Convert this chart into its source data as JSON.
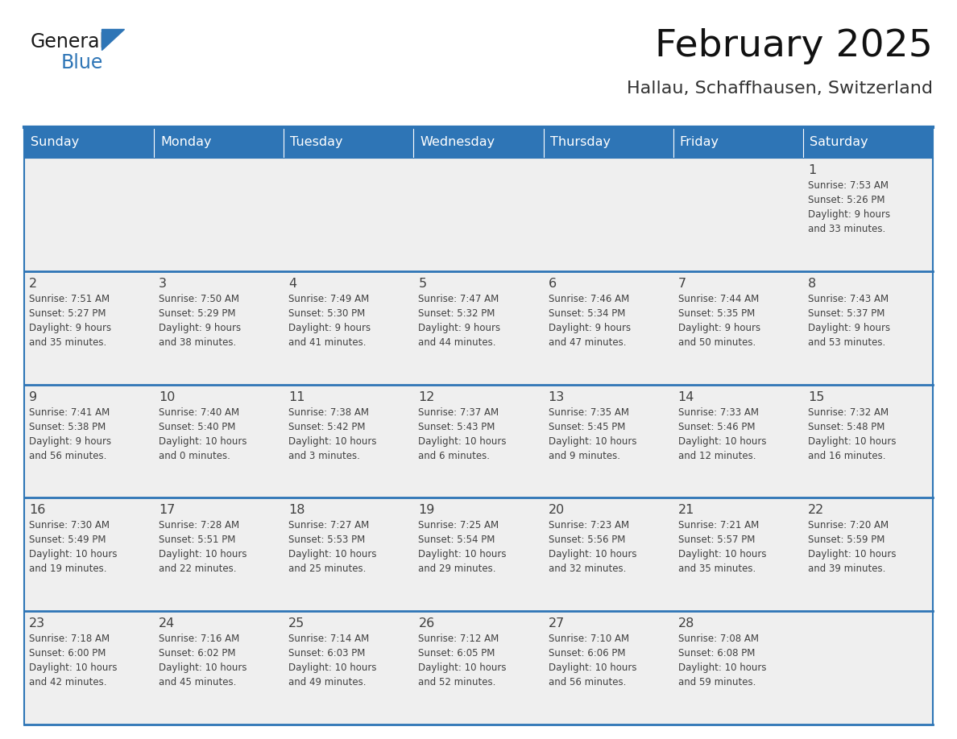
{
  "title": "February 2025",
  "subtitle": "Hallau, Schaffhausen, Switzerland",
  "header_bg": "#2E75B6",
  "header_text_color": "#FFFFFF",
  "cell_bg": "#EFEFEF",
  "border_color": "#2E75B6",
  "text_color": "#404040",
  "day_number_color": "#404040",
  "day_headers": [
    "Sunday",
    "Monday",
    "Tuesday",
    "Wednesday",
    "Thursday",
    "Friday",
    "Saturday"
  ],
  "weeks": [
    [
      {
        "day": "",
        "info": ""
      },
      {
        "day": "",
        "info": ""
      },
      {
        "day": "",
        "info": ""
      },
      {
        "day": "",
        "info": ""
      },
      {
        "day": "",
        "info": ""
      },
      {
        "day": "",
        "info": ""
      },
      {
        "day": "1",
        "info": "Sunrise: 7:53 AM\nSunset: 5:26 PM\nDaylight: 9 hours\nand 33 minutes."
      }
    ],
    [
      {
        "day": "2",
        "info": "Sunrise: 7:51 AM\nSunset: 5:27 PM\nDaylight: 9 hours\nand 35 minutes."
      },
      {
        "day": "3",
        "info": "Sunrise: 7:50 AM\nSunset: 5:29 PM\nDaylight: 9 hours\nand 38 minutes."
      },
      {
        "day": "4",
        "info": "Sunrise: 7:49 AM\nSunset: 5:30 PM\nDaylight: 9 hours\nand 41 minutes."
      },
      {
        "day": "5",
        "info": "Sunrise: 7:47 AM\nSunset: 5:32 PM\nDaylight: 9 hours\nand 44 minutes."
      },
      {
        "day": "6",
        "info": "Sunrise: 7:46 AM\nSunset: 5:34 PM\nDaylight: 9 hours\nand 47 minutes."
      },
      {
        "day": "7",
        "info": "Sunrise: 7:44 AM\nSunset: 5:35 PM\nDaylight: 9 hours\nand 50 minutes."
      },
      {
        "day": "8",
        "info": "Sunrise: 7:43 AM\nSunset: 5:37 PM\nDaylight: 9 hours\nand 53 minutes."
      }
    ],
    [
      {
        "day": "9",
        "info": "Sunrise: 7:41 AM\nSunset: 5:38 PM\nDaylight: 9 hours\nand 56 minutes."
      },
      {
        "day": "10",
        "info": "Sunrise: 7:40 AM\nSunset: 5:40 PM\nDaylight: 10 hours\nand 0 minutes."
      },
      {
        "day": "11",
        "info": "Sunrise: 7:38 AM\nSunset: 5:42 PM\nDaylight: 10 hours\nand 3 minutes."
      },
      {
        "day": "12",
        "info": "Sunrise: 7:37 AM\nSunset: 5:43 PM\nDaylight: 10 hours\nand 6 minutes."
      },
      {
        "day": "13",
        "info": "Sunrise: 7:35 AM\nSunset: 5:45 PM\nDaylight: 10 hours\nand 9 minutes."
      },
      {
        "day": "14",
        "info": "Sunrise: 7:33 AM\nSunset: 5:46 PM\nDaylight: 10 hours\nand 12 minutes."
      },
      {
        "day": "15",
        "info": "Sunrise: 7:32 AM\nSunset: 5:48 PM\nDaylight: 10 hours\nand 16 minutes."
      }
    ],
    [
      {
        "day": "16",
        "info": "Sunrise: 7:30 AM\nSunset: 5:49 PM\nDaylight: 10 hours\nand 19 minutes."
      },
      {
        "day": "17",
        "info": "Sunrise: 7:28 AM\nSunset: 5:51 PM\nDaylight: 10 hours\nand 22 minutes."
      },
      {
        "day": "18",
        "info": "Sunrise: 7:27 AM\nSunset: 5:53 PM\nDaylight: 10 hours\nand 25 minutes."
      },
      {
        "day": "19",
        "info": "Sunrise: 7:25 AM\nSunset: 5:54 PM\nDaylight: 10 hours\nand 29 minutes."
      },
      {
        "day": "20",
        "info": "Sunrise: 7:23 AM\nSunset: 5:56 PM\nDaylight: 10 hours\nand 32 minutes."
      },
      {
        "day": "21",
        "info": "Sunrise: 7:21 AM\nSunset: 5:57 PM\nDaylight: 10 hours\nand 35 minutes."
      },
      {
        "day": "22",
        "info": "Sunrise: 7:20 AM\nSunset: 5:59 PM\nDaylight: 10 hours\nand 39 minutes."
      }
    ],
    [
      {
        "day": "23",
        "info": "Sunrise: 7:18 AM\nSunset: 6:00 PM\nDaylight: 10 hours\nand 42 minutes."
      },
      {
        "day": "24",
        "info": "Sunrise: 7:16 AM\nSunset: 6:02 PM\nDaylight: 10 hours\nand 45 minutes."
      },
      {
        "day": "25",
        "info": "Sunrise: 7:14 AM\nSunset: 6:03 PM\nDaylight: 10 hours\nand 49 minutes."
      },
      {
        "day": "26",
        "info": "Sunrise: 7:12 AM\nSunset: 6:05 PM\nDaylight: 10 hours\nand 52 minutes."
      },
      {
        "day": "27",
        "info": "Sunrise: 7:10 AM\nSunset: 6:06 PM\nDaylight: 10 hours\nand 56 minutes."
      },
      {
        "day": "28",
        "info": "Sunrise: 7:08 AM\nSunset: 6:08 PM\nDaylight: 10 hours\nand 59 minutes."
      },
      {
        "day": "",
        "info": ""
      }
    ]
  ]
}
